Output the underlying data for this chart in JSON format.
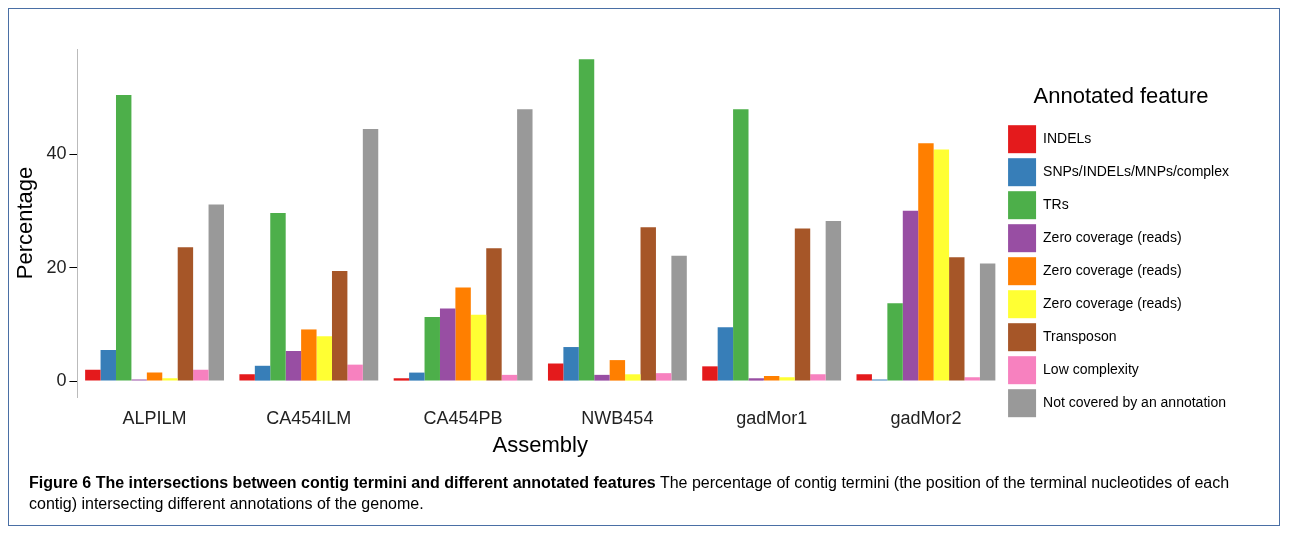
{
  "chart_data": {
    "type": "bar",
    "xlabel": "Assembly",
    "ylabel": "Percentage",
    "legend_title": "Annotated feature",
    "legend": "right",
    "grid": false,
    "categories": [
      "ALPILM",
      "CA454ILM",
      "CA454PB",
      "NWB454",
      "gadMor1",
      "gadMor2"
    ],
    "ylim": [
      -2.8,
      58.5
    ],
    "yticks": [
      0,
      20,
      40
    ],
    "series": [
      {
        "name": "INDELs",
        "color": "#e41a1c",
        "values": [
          2.0,
          1.2,
          0.5,
          3.1,
          2.6,
          1.2
        ]
      },
      {
        "name": "SNPs/INDELs/MNPs/complex",
        "color": "#377eb8",
        "values": [
          5.5,
          2.7,
          1.5,
          6.0,
          9.5,
          0.3
        ]
      },
      {
        "name": "TRs",
        "color": "#4daf4a",
        "values": [
          50.4,
          29.6,
          11.3,
          56.7,
          47.9,
          13.7
        ]
      },
      {
        "name": "Zero coverage (reads)",
        "color": "#984ea3",
        "values": [
          0.3,
          5.3,
          12.8,
          1.1,
          0.5,
          30.0
        ]
      },
      {
        "name": "Zero coverage (reads)",
        "color": "#ff7f00",
        "values": [
          1.5,
          9.1,
          16.5,
          3.7,
          0.9,
          41.9
        ]
      },
      {
        "name": "Zero coverage (reads)",
        "color": "#ffff33",
        "values": [
          0.5,
          7.9,
          11.7,
          1.2,
          0.7,
          40.8
        ]
      },
      {
        "name": "Transposon",
        "color": "#a65628",
        "values": [
          23.6,
          19.4,
          23.4,
          27.1,
          26.9,
          21.8
        ]
      },
      {
        "name": "Low complexity",
        "color": "#f781bf",
        "values": [
          2.0,
          2.9,
          1.1,
          1.4,
          1.2,
          0.7
        ]
      },
      {
        "name": "Not covered by an annotation",
        "color": "#999999",
        "values": [
          31.1,
          44.4,
          47.9,
          22.1,
          28.2,
          20.7
        ]
      }
    ],
    "annotations": [
      "Figure 6  The intersections between contig termini and different annotated features",
      "The percentage of contig termini (the position of the terminal nucleotides of each contig) intersecting different annotations of the genome."
    ]
  }
}
